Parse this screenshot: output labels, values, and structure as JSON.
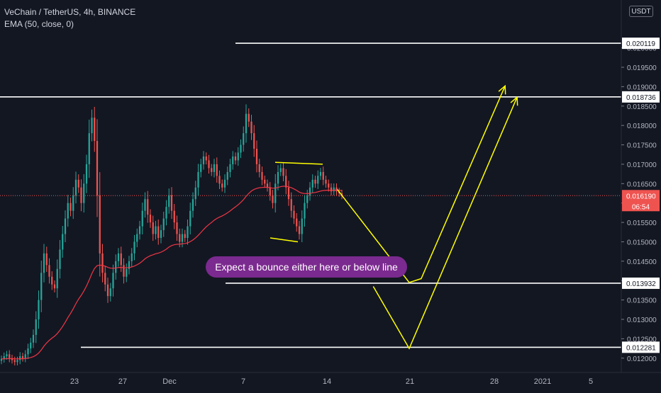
{
  "header": {
    "symbol_line": "VeChain / TetherUS, 4h, BINANCE",
    "indicator_line": "EMA (50, close, 0)"
  },
  "currency_button": "USDT",
  "annotation_text": "Expect a bounce either here or below line",
  "colors": {
    "background": "#131722",
    "up": "#26a69a",
    "down": "#ef5350",
    "ema": "#f23645",
    "drawing": "#ffff00",
    "level_line": "#ffffff",
    "callout": "#7b2a8f",
    "current_price_tag": "#ef5350"
  },
  "chart_data": {
    "type": "candlestick",
    "title": "VeChain / TetherUS, 4h, BINANCE",
    "indicator": "EMA (50, close, 0)",
    "ylim": [
      0.01185,
      0.02055
    ],
    "y_ticks": [
      "0.020000",
      "0.019500",
      "0.019000",
      "0.018500",
      "0.018000",
      "0.017500",
      "0.017000",
      "0.016500",
      "0.016000",
      "0.015500",
      "0.015000",
      "0.014500",
      "0.014000",
      "0.013500",
      "0.013000",
      "0.012500",
      "0.012000"
    ],
    "x_ticks": [
      "23",
      "27",
      "Dec",
      "7",
      "14",
      "21",
      "28",
      "2021",
      "5"
    ],
    "levels": [
      "0.020119",
      "0.018736",
      "0.013932",
      "0.012281"
    ],
    "current_price": "0.016190",
    "countdown": "06:54",
    "grid": false,
    "closes": [
      0.01198,
      0.01205,
      0.0121,
      0.012,
      0.01195,
      0.0119,
      0.01195,
      0.01205,
      0.012,
      0.0121,
      0.01225,
      0.0124,
      0.0126,
      0.013,
      0.0135,
      0.0142,
      0.0147,
      0.0144,
      0.0141,
      0.0139,
      0.0138,
      0.0143,
      0.0148,
      0.0152,
      0.0156,
      0.016,
      0.0158,
      0.0162,
      0.0166,
      0.0164,
      0.016,
      0.0165,
      0.017,
      0.0178,
      0.0182,
      0.0176,
      0.0162,
      0.0147,
      0.0142,
      0.0139,
      0.0136,
      0.0138,
      0.0142,
      0.0145,
      0.0147,
      0.0144,
      0.0141,
      0.0143,
      0.0145,
      0.0147,
      0.015,
      0.0152,
      0.0154,
      0.0158,
      0.0161,
      0.0157,
      0.0155,
      0.0152,
      0.0154,
      0.0151,
      0.0153,
      0.0156,
      0.0159,
      0.0162,
      0.0158,
      0.0155,
      0.0152,
      0.015,
      0.0152,
      0.0151,
      0.0154,
      0.0158,
      0.0161,
      0.0164,
      0.0168,
      0.017,
      0.0172,
      0.0171,
      0.0169,
      0.0168,
      0.017,
      0.0167,
      0.0165,
      0.0164,
      0.0166,
      0.0168,
      0.017,
      0.0172,
      0.0171,
      0.0173,
      0.0175,
      0.0178,
      0.0183,
      0.0181,
      0.0178,
      0.0174,
      0.017,
      0.0168,
      0.0166,
      0.0165,
      0.0164,
      0.0162,
      0.016,
      0.0165,
      0.0168,
      0.0169,
      0.0167,
      0.0164,
      0.0161,
      0.0158,
      0.0156,
      0.0154,
      0.0152,
      0.0156,
      0.016,
      0.0162,
      0.0164,
      0.0166,
      0.0165,
      0.0167,
      0.0168,
      0.0166,
      0.0165,
      0.0164,
      0.0163,
      0.0164,
      0.0163,
      0.01625,
      0.01619
    ],
    "projection_path_1": [
      [
        "Dec 15",
        0.01635
      ],
      [
        "Dec 21",
        0.01395
      ],
      [
        "Dec 22",
        0.01405
      ],
      [
        "Dec 29",
        0.01902
      ]
    ],
    "projection_path_2": [
      [
        "Dec 18",
        0.01385
      ],
      [
        "Dec 21",
        0.01225
      ],
      [
        "Dec 30",
        0.01873
      ]
    ]
  }
}
